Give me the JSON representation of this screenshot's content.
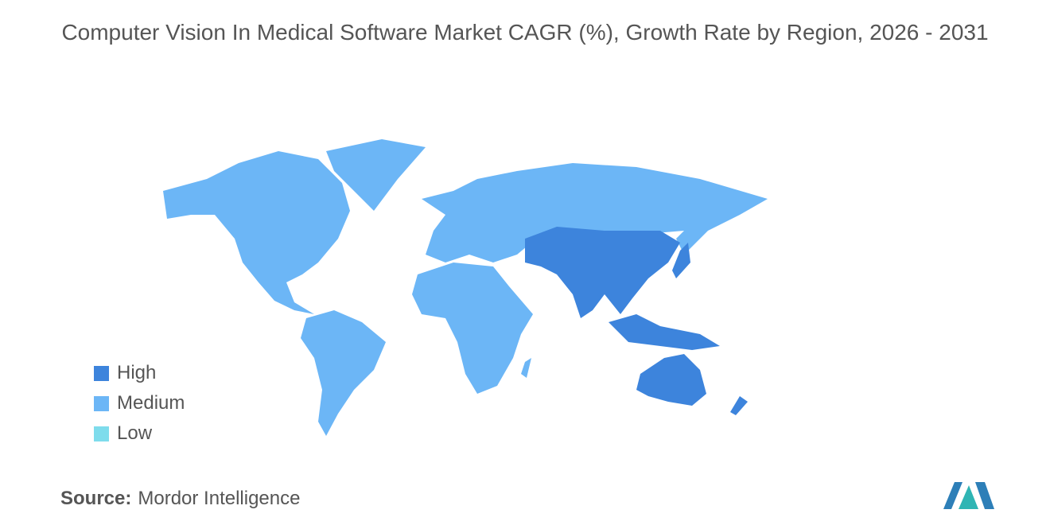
{
  "title": "Computer Vision In Medical Software Market CAGR (%), Growth Rate by Region, 2026 - 2031",
  "legend": [
    {
      "label": "High",
      "color": "#3d84dc"
    },
    {
      "label": "Medium",
      "color": "#6cb6f6"
    },
    {
      "label": "Low",
      "color": "#7edcec"
    }
  ],
  "source": {
    "label": "Source:",
    "text": "Mordor Intelligence"
  }
}
